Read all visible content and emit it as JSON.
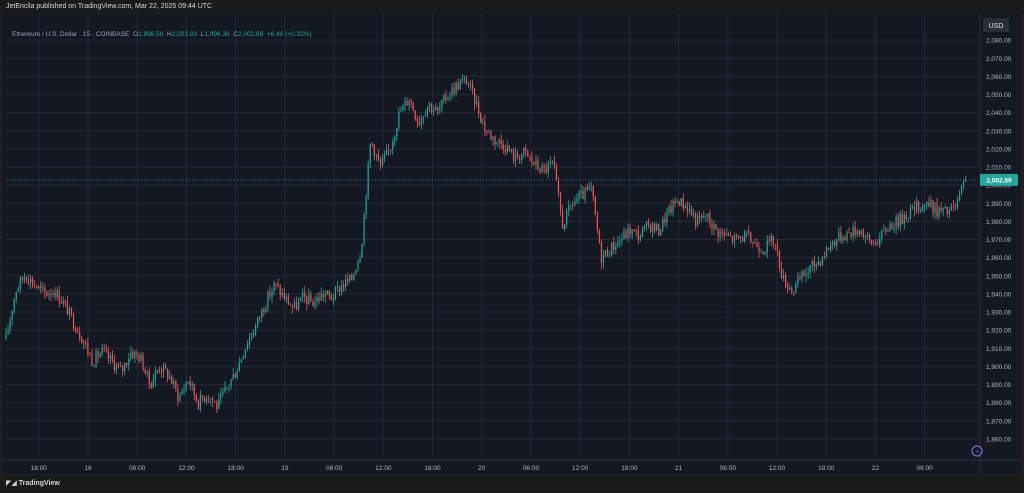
{
  "header": {
    "published": "JetEncila published on TradingView.com, Mar 22, 2025 09:44 UTC"
  },
  "legend": {
    "symbol": "Ethereum / U.S. Dollar · 15 · COINBASE",
    "o_label": "O",
    "o": "1,996.50",
    "h_label": "H",
    "h": "2,003.83",
    "l_label": "L",
    "l": "1,996.36",
    "c_label": "C",
    "c": "2,002.89",
    "change": "+6.40 (+0.32%)"
  },
  "currency_button": "USD",
  "price_tag": "2,002.89",
  "footer": {
    "brand": "TradingView"
  },
  "colors": {
    "up": "#26a69a",
    "down": "#ef5350",
    "background": "#141823",
    "grid": "#232834",
    "tag": "#26a69a"
  },
  "chart_data": {
    "type": "candlestick",
    "interval": "15",
    "ylim": [
      1850,
      2090
    ],
    "y_ticks": [
      2080,
      2070,
      2060,
      2050,
      2040,
      2030,
      2020,
      2010,
      2000,
      1990,
      1980,
      1970,
      1960,
      1950,
      1940,
      1930,
      1920,
      1910,
      1900,
      1890,
      1880,
      1870,
      1860
    ],
    "y_tick_labels": [
      "2,080.00",
      "2,070.00",
      "2,060.00",
      "2,050.00",
      "2,040.00",
      "2,030.00",
      "2,020.00",
      "2,010.00",
      "2,000.00",
      "1,990.00",
      "1,980.00",
      "1,970.00",
      "1,960.00",
      "1,950.00",
      "1,940.00",
      "1,930.00",
      "1,920.00",
      "1,910.00",
      "1,900.00",
      "1,890.00",
      "1,880.00",
      "1,870.00",
      "1,860.00"
    ],
    "x_ticks": [
      0,
      6,
      12,
      18,
      24,
      30,
      36,
      42,
      48,
      54,
      60,
      66,
      72,
      78,
      84,
      90,
      96,
      102,
      108,
      114,
      120
    ],
    "x_tick_labels": [
      "18:00",
      "18",
      "06:00",
      "12:00",
      "18:00",
      "19",
      "06:00",
      "12:00",
      "18:00",
      "20",
      "06:00",
      "12:00",
      "18:00",
      "21",
      "06:00",
      "12:00",
      "18:00",
      "22",
      "06:00"
    ],
    "x_tick_hours": [
      0,
      6,
      12,
      18,
      24,
      30,
      36,
      42,
      48,
      54,
      60,
      66,
      72,
      78,
      84,
      90,
      96,
      102,
      108
    ],
    "last_price": 2002.89,
    "anchors": [
      [
        0,
        1915
      ],
      [
        1,
        1942
      ],
      [
        2,
        1951
      ],
      [
        3,
        1945
      ],
      [
        4,
        1940
      ],
      [
        5,
        1942
      ],
      [
        6,
        1935
      ],
      [
        7,
        1925
      ],
      [
        8,
        1915
      ],
      [
        9,
        1903
      ],
      [
        10,
        1908
      ],
      [
        11,
        1903
      ],
      [
        12,
        1897
      ],
      [
        13,
        1908
      ],
      [
        14,
        1905
      ],
      [
        15,
        1890
      ],
      [
        16,
        1900
      ],
      [
        17,
        1895
      ],
      [
        18,
        1883
      ],
      [
        19,
        1893
      ],
      [
        20,
        1880
      ],
      [
        21,
        1885
      ],
      [
        22,
        1878
      ],
      [
        23,
        1888
      ],
      [
        24,
        1898
      ],
      [
        25,
        1912
      ],
      [
        26,
        1922
      ],
      [
        27,
        1935
      ],
      [
        28,
        1945
      ],
      [
        29,
        1938
      ],
      [
        30,
        1932
      ],
      [
        31,
        1938
      ],
      [
        32,
        1935
      ],
      [
        33,
        1940
      ],
      [
        34,
        1938
      ],
      [
        35,
        1945
      ],
      [
        36,
        1948
      ],
      [
        37,
        1965
      ],
      [
        38,
        2025
      ],
      [
        39,
        2010
      ],
      [
        40,
        2020
      ],
      [
        41,
        2040
      ],
      [
        42,
        2048
      ],
      [
        43,
        2035
      ],
      [
        44,
        2045
      ],
      [
        45,
        2040
      ],
      [
        46,
        2050
      ],
      [
        47,
        2055
      ],
      [
        48,
        2058
      ],
      [
        49,
        2045
      ],
      [
        50,
        2030
      ],
      [
        51,
        2025
      ],
      [
        52,
        2022
      ],
      [
        53,
        2015
      ],
      [
        54,
        2018
      ],
      [
        55,
        2012
      ],
      [
        56,
        2008
      ],
      [
        57,
        2012
      ],
      [
        58,
        1978
      ],
      [
        59,
        1990
      ],
      [
        60,
        1994
      ],
      [
        61,
        1998
      ],
      [
        62,
        1960
      ],
      [
        63,
        1965
      ],
      [
        64,
        1970
      ],
      [
        65,
        1975
      ],
      [
        66,
        1972
      ],
      [
        67,
        1978
      ],
      [
        68,
        1975
      ],
      [
        69,
        1985
      ],
      [
        70,
        1992
      ],
      [
        71,
        1988
      ],
      [
        72,
        1980
      ],
      [
        73,
        1983
      ],
      [
        74,
        1975
      ],
      [
        75,
        1972
      ],
      [
        76,
        1970
      ],
      [
        77,
        1972
      ],
      [
        78,
        1968
      ],
      [
        79,
        1965
      ],
      [
        80,
        1970
      ],
      [
        81,
        1948
      ],
      [
        82,
        1942
      ],
      [
        83,
        1950
      ],
      [
        84,
        1955
      ],
      [
        85,
        1960
      ],
      [
        86,
        1968
      ],
      [
        87,
        1972
      ],
      [
        88,
        1974
      ],
      [
        89,
        1976
      ],
      [
        90,
        1968
      ],
      [
        91,
        1970
      ],
      [
        92,
        1978
      ],
      [
        93,
        1980
      ],
      [
        94,
        1985
      ],
      [
        95,
        1988
      ],
      [
        96,
        1990
      ],
      [
        97,
        1986
      ],
      [
        98,
        1985
      ],
      [
        99,
        1988
      ],
      [
        100,
        2003
      ]
    ]
  }
}
